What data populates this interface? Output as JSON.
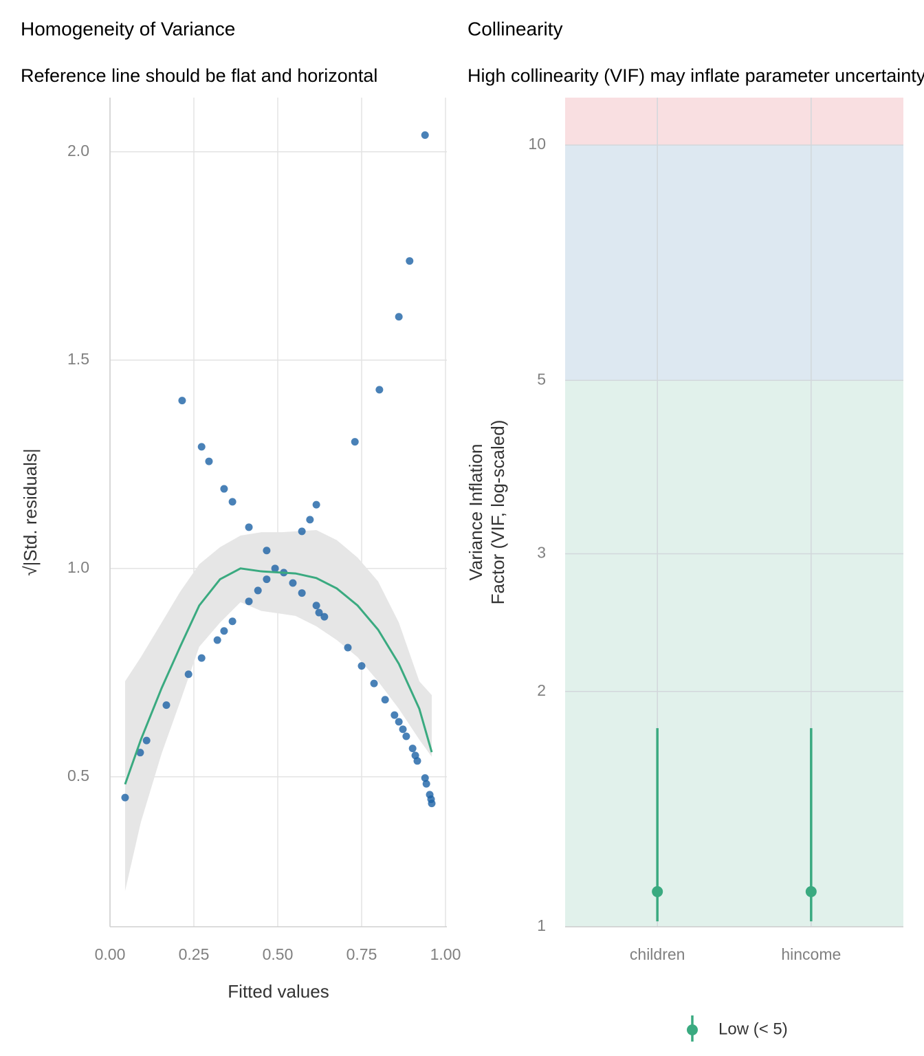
{
  "chart_data": [
    {
      "type": "scatter",
      "title": "Homogeneity of Variance",
      "subtitle": "Reference line should be flat and horizontal",
      "xlabel": "Fitted values",
      "ylabel": "√|Std. residuals|",
      "xlim": [
        0,
        1
      ],
      "ylim": [
        0.14,
        2.13
      ],
      "xticks": [
        {
          "value": 0,
          "label": "0.00"
        },
        0.25,
        {
          "value": 0.5,
          "label": "0.50"
        },
        0.75,
        {
          "value": 1,
          "label": "1.00"
        }
      ],
      "yticks": [
        0.5,
        {
          "value": 1,
          "label": "1.0"
        },
        1.5,
        {
          "value": 2,
          "label": "2.0"
        }
      ],
      "grid": true,
      "color": "#1b62a5",
      "x": [
        0.045,
        0.09,
        0.109,
        0.168,
        0.215,
        0.234,
        0.273,
        0.273,
        0.295,
        0.32,
        0.34,
        0.34,
        0.365,
        0.365,
        0.414,
        0.414,
        0.441,
        0.467,
        0.467,
        0.492,
        0.518,
        0.545,
        0.572,
        0.572,
        0.596,
        0.615,
        0.615,
        0.623,
        0.639,
        0.709,
        0.73,
        0.75,
        0.787,
        0.803,
        0.82,
        0.848,
        0.861,
        0.861,
        0.873,
        0.883,
        0.893,
        0.902,
        0.91,
        0.916,
        0.939,
        0.939,
        0.943,
        0.953,
        0.957,
        0.959
      ],
      "values": [
        0.45,
        0.558,
        0.587,
        0.672,
        1.403,
        0.746,
        1.292,
        0.785,
        1.257,
        0.828,
        1.191,
        0.85,
        1.16,
        0.873,
        1.099,
        0.921,
        0.947,
        1.043,
        0.974,
        1.0,
        0.99,
        0.965,
        1.089,
        0.941,
        1.117,
        1.153,
        0.911,
        0.894,
        0.884,
        0.81,
        1.304,
        0.766,
        0.724,
        1.429,
        0.685,
        0.648,
        1.604,
        0.632,
        0.614,
        0.597,
        1.738,
        0.568,
        0.551,
        0.538,
        2.04,
        0.497,
        0.483,
        0.457,
        0.446,
        0.436
      ],
      "fit": {
        "color": "#3aaa80",
        "band_color": "#e6e6e6",
        "x": [
          0.045,
          0.092,
          0.154,
          0.209,
          0.266,
          0.328,
          0.389,
          0.451,
          0.512,
          0.553,
          0.615,
          0.676,
          0.738,
          0.799,
          0.861,
          0.922,
          0.959
        ],
        "values": [
          0.482,
          0.589,
          0.713,
          0.812,
          0.911,
          0.974,
          1.0,
          0.993,
          0.99,
          0.988,
          0.977,
          0.952,
          0.911,
          0.853,
          0.771,
          0.663,
          0.559
        ],
        "upper": [
          0.729,
          0.787,
          0.87,
          0.944,
          1.01,
          1.051,
          1.079,
          1.087,
          1.087,
          1.089,
          1.092,
          1.068,
          1.026,
          0.969,
          0.87,
          0.729,
          0.696
        ],
        "lower": [
          0.226,
          0.391,
          0.556,
          0.68,
          0.812,
          0.87,
          0.919,
          0.898,
          0.891,
          0.886,
          0.861,
          0.828,
          0.787,
          0.729,
          0.663,
          0.589,
          0.548
        ]
      }
    },
    {
      "type": "interval",
      "title": "Collinearity",
      "subtitle": "High collinearity (VIF) may inflate parameter uncertainty",
      "ylabel": [
        "Variance Inflation",
        "Factor (VIF, log-scaled)"
      ],
      "log_scale": true,
      "ylim": [
        1,
        11.5
      ],
      "yticks": [
        1,
        2,
        3,
        5,
        10
      ],
      "grid": true,
      "bands": [
        {
          "from": 1,
          "to": 5,
          "color": "#e1f1eb"
        },
        {
          "from": 5,
          "to": 10,
          "color": "#dde8f1"
        },
        {
          "from": 10,
          "to": 11.5,
          "color": "#f9dfe1"
        }
      ],
      "categories": [
        "children",
        "hincome"
      ],
      "series": [
        {
          "name": "Low (< 5)",
          "color": "#3aaa80",
          "values": [
            1.109,
            1.109
          ],
          "lower": [
            1.016,
            1.016
          ],
          "upper": [
            1.795,
            1.795
          ]
        }
      ],
      "legend": "bottom"
    }
  ]
}
